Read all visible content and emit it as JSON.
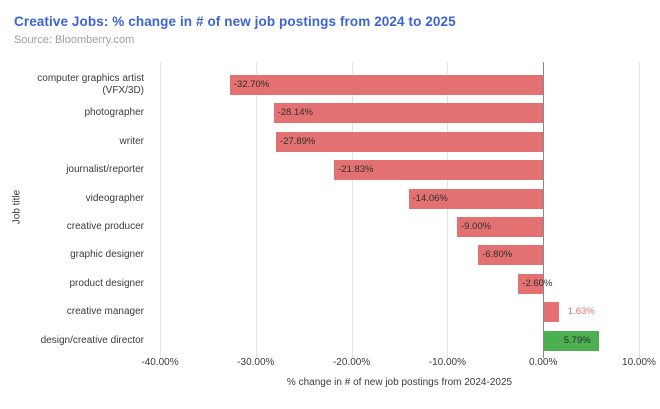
{
  "header": {
    "title": "Creative Jobs: % change in # of new job postings from 2024 to 2025",
    "source": "Source: Bloomberry.com",
    "title_color": "#3c64d2",
    "source_color": "#9e9e9e"
  },
  "chart_data": {
    "type": "bar",
    "orientation": "horizontal",
    "title": "Creative Jobs: % change in # of new job postings from 2024 to 2025",
    "categories": [
      "computer graphics artist (VFX/3D)",
      "photographer",
      "writer",
      "journalist/reporter",
      "videographer",
      "creative producer",
      "graphic designer",
      "product designer",
      "creative manager",
      "design/creative director"
    ],
    "values": [
      -32.7,
      -28.14,
      -27.89,
      -21.83,
      -14.06,
      -9.0,
      -6.8,
      -2.6,
      1.63,
      5.79
    ],
    "value_labels": [
      "-32.70%",
      "-28.14%",
      "-27.89%",
      "-21.83%",
      "-14.06%",
      "-9.00%",
      "-6.80%",
      "-2.60%",
      "1.63%",
      "5.79%"
    ],
    "bar_colors": [
      "#e47171",
      "#e47171",
      "#e47171",
      "#e47171",
      "#e47171",
      "#e47171",
      "#e47171",
      "#e47171",
      "#e47171",
      "#4caf50"
    ],
    "xlabel": "% change in # of new job postings from 2024-2025",
    "ylabel": "Job title",
    "xlim": [
      -40,
      10
    ],
    "x_ticks": [
      -40,
      -30,
      -20,
      -10,
      0,
      10
    ],
    "x_tick_labels": [
      "-40.00%",
      "-30.00%",
      "-20.00%",
      "-10.00%",
      "0.00%",
      "10.00%"
    ],
    "grid": true,
    "legend": false,
    "colors": {
      "gridline": "#e3e3e3",
      "zero_line": "#8a8a8a",
      "value_label_text": "#2e2e2e",
      "axis_text": "#3b3b3b"
    }
  }
}
